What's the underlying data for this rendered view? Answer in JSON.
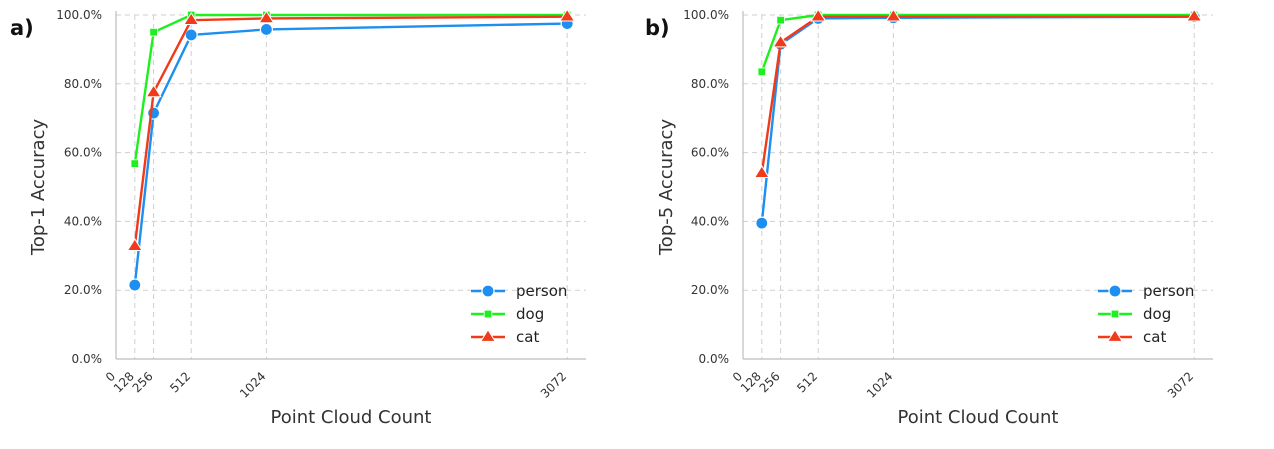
{
  "chart_data": [
    {
      "panel_label": "a)",
      "type": "line",
      "xlabel": "Point Cloud Count",
      "ylabel": "Top-1 Accuracy",
      "x": [
        128,
        256,
        512,
        1024,
        3072
      ],
      "xticks": [
        "0",
        "128",
        "256",
        "512",
        "1024",
        "3072"
      ],
      "xlim": [
        0,
        3200
      ],
      "ylim": [
        0,
        100
      ],
      "yticks": [
        "0.0%",
        "20.0%",
        "40.0%",
        "60.0%",
        "80.0%",
        "100.0%"
      ],
      "grid": true,
      "legend_position": "lower-right",
      "series": [
        {
          "name": "person",
          "color": "#1e8ff0",
          "marker": "circle",
          "values": [
            21.5,
            71.5,
            94.2,
            95.8,
            97.5
          ]
        },
        {
          "name": "dog",
          "color": "#1ef01e",
          "marker": "square",
          "values": [
            56.8,
            95.0,
            100.0,
            100.0,
            100.0
          ]
        },
        {
          "name": "cat",
          "color": "#f03a1a",
          "marker": "triangle",
          "values": [
            32.8,
            77.5,
            98.5,
            99.0,
            99.5
          ]
        }
      ]
    },
    {
      "panel_label": "b)",
      "type": "line",
      "xlabel": "Point Cloud Count",
      "ylabel": "Top-5 Accuracy",
      "x": [
        128,
        256,
        512,
        1024,
        3072
      ],
      "xticks": [
        "0",
        "128",
        "256",
        "512",
        "1024",
        "3072"
      ],
      "xlim": [
        0,
        3200
      ],
      "ylim": [
        0,
        100
      ],
      "yticks": [
        "0.0%",
        "20.0%",
        "40.0%",
        "60.0%",
        "80.0%",
        "100.0%"
      ],
      "grid": true,
      "legend_position": "lower-right",
      "series": [
        {
          "name": "person",
          "color": "#1e8ff0",
          "marker": "circle",
          "values": [
            39.5,
            91.5,
            99.0,
            99.2,
            99.5
          ]
        },
        {
          "name": "dog",
          "color": "#1ef01e",
          "marker": "square",
          "values": [
            83.5,
            98.5,
            100.0,
            100.0,
            100.0
          ]
        },
        {
          "name": "cat",
          "color": "#f03a1a",
          "marker": "triangle",
          "values": [
            54.0,
            92.0,
            99.5,
            99.5,
            99.5
          ]
        }
      ]
    }
  ]
}
